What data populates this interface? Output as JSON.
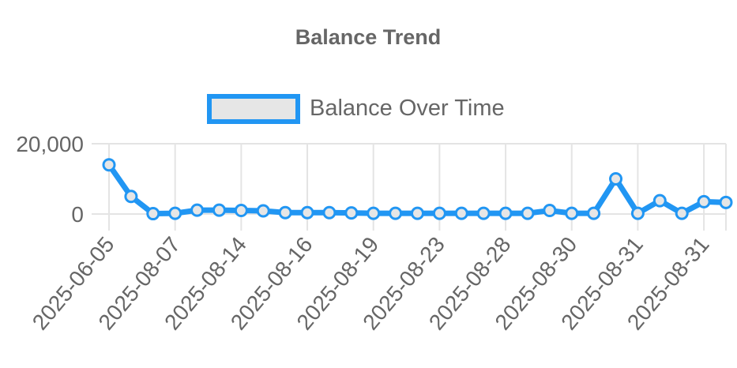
{
  "chart_data": {
    "type": "line",
    "title": "Balance Trend",
    "legend": {
      "position": "top",
      "entries": [
        "Balance Over Time"
      ]
    },
    "series": [
      {
        "name": "Balance Over Time",
        "color": "#2196f3",
        "fill": "#e6e6e6",
        "values": [
          14000,
          5000,
          100,
          200,
          1100,
          1100,
          1000,
          900,
          400,
          400,
          400,
          300,
          200,
          200,
          200,
          200,
          200,
          200,
          200,
          200,
          1000,
          200,
          200,
          10000,
          200,
          3800,
          200,
          3500,
          3300
        ]
      }
    ],
    "x_ticks": [
      "2025-06-05",
      "2025-08-07",
      "2025-08-14",
      "2025-08-16",
      "2025-08-19",
      "2025-08-23",
      "2025-08-28",
      "2025-08-30",
      "2025-08-31",
      "2025-08-31"
    ],
    "y_ticks": [
      "0",
      "20,000"
    ],
    "y_tick_values": [
      0,
      20000
    ],
    "ylim": [
      -3000,
      20000
    ],
    "grid": true,
    "xlabel": "",
    "ylabel": ""
  }
}
